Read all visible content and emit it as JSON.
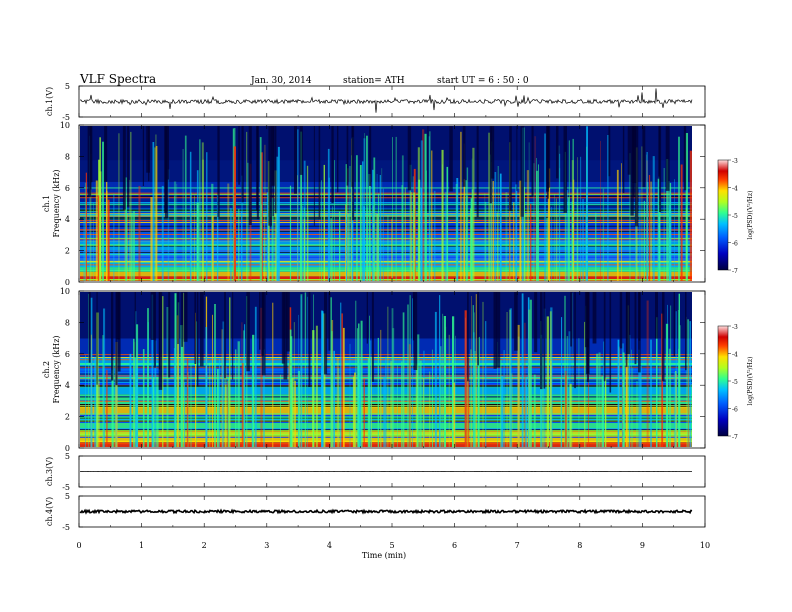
{
  "header": {
    "title": "VLF  Spectra",
    "date": "Jan. 30, 2014",
    "station": "station= ATH",
    "start": "start  UT =   6  : 50 : 0"
  },
  "colors": {
    "spectrogram_scale": [
      "#000040",
      "#0000a0",
      "#0030ff",
      "#00b0ff",
      "#30ff90",
      "#a0ff30",
      "#ffe000",
      "#ff5000",
      "#d00000",
      "#ff8080",
      "#ffd0d0"
    ],
    "trace": "#000000"
  },
  "chart_data": [
    {
      "type": "line",
      "panel": "ch1-time-series",
      "ylabel": "ch.1(V)",
      "ylim": [
        -5,
        5
      ],
      "yticks": [
        "5",
        "-5"
      ],
      "baseline": 0,
      "description_values": "noisy trace near 0 V with spikes"
    },
    {
      "type": "heatmap",
      "panel": "ch1-spectrogram",
      "ylabel_top": "ch.1",
      "ylabel": "Frequency (kHz)",
      "ylim": [
        0,
        10
      ],
      "yticks": [
        "0",
        "2",
        "4",
        "6",
        "8",
        "10"
      ],
      "colorbar": {
        "label": "log(PSD)(V²/Hz)",
        "ticks": [
          "-3",
          "-4",
          "-5",
          "-6",
          "-7"
        ],
        "range": [
          -7,
          -3
        ]
      }
    },
    {
      "type": "heatmap",
      "panel": "ch2-spectrogram",
      "ylabel_top": "ch.2",
      "ylabel": "Frequency (kHz)",
      "ylim": [
        0,
        10
      ],
      "yticks": [
        "0",
        "2",
        "4",
        "6",
        "8",
        "10"
      ],
      "colorbar": {
        "label": "log(PSD)(V²/Hz)",
        "ticks": [
          "-3",
          "-4",
          "-5",
          "-6",
          "-7"
        ],
        "range": [
          -7,
          -3
        ]
      }
    },
    {
      "type": "line",
      "panel": "ch3-time-series",
      "ylabel": "ch.3(V)",
      "ylim": [
        -5,
        5
      ],
      "yticks": [
        "5",
        "-5"
      ],
      "baseline": 0
    },
    {
      "type": "line",
      "panel": "ch4-time-series",
      "ylabel": "ch.4(V)",
      "ylim": [
        -5,
        5
      ],
      "yticks": [
        "5",
        "-5"
      ],
      "baseline": 0
    }
  ],
  "xaxis": {
    "label": "Time  (min)",
    "ticks": [
      "0",
      "1",
      "2",
      "3",
      "4",
      "5",
      "6",
      "7",
      "8",
      "9",
      "10"
    ],
    "xlim": [
      0,
      10
    ],
    "data_end": 9.8
  }
}
